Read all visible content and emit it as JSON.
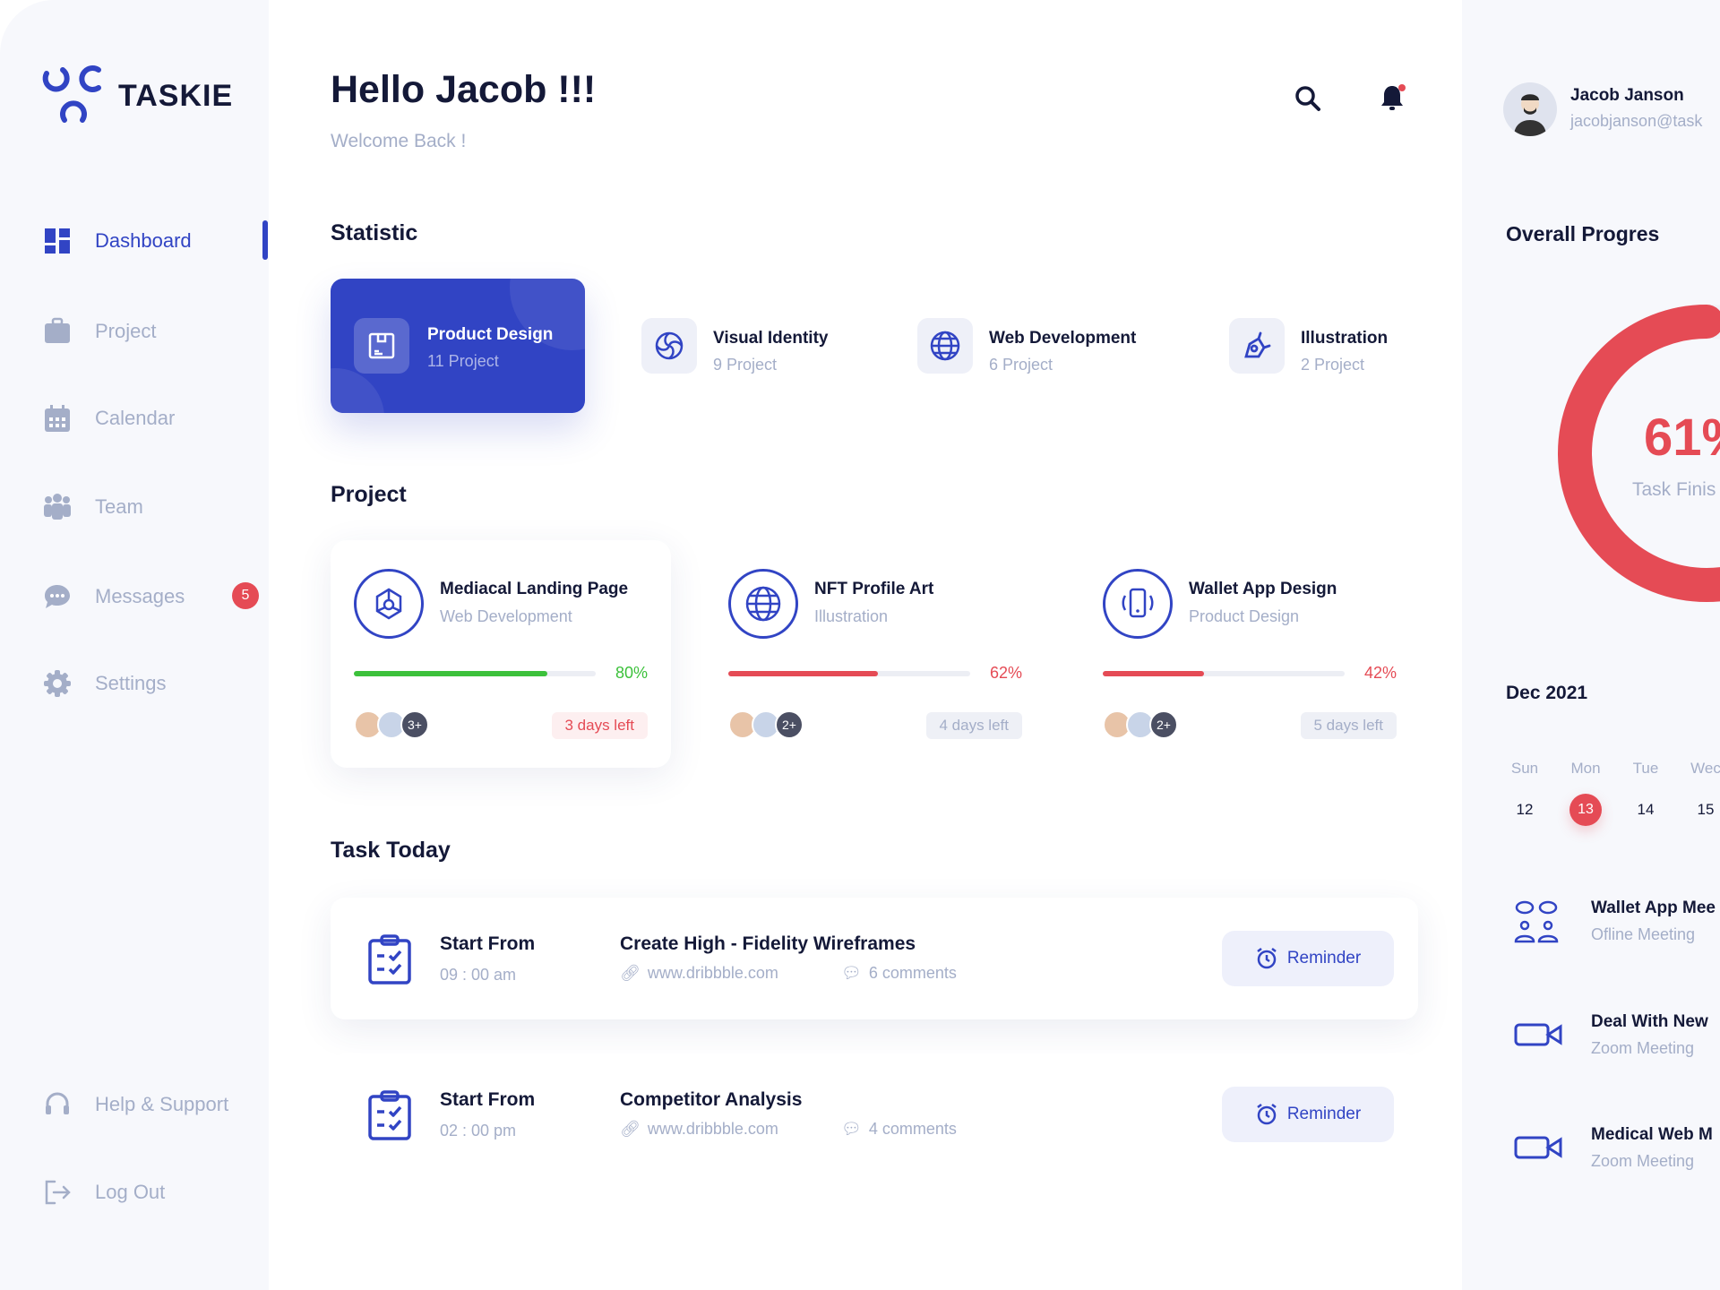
{
  "brand": {
    "name": "TASKIE",
    "accent": "#3144c4",
    "danger": "#e54b55",
    "success": "#3cc13b"
  },
  "sidebar": {
    "items": [
      {
        "label": "Dashboard",
        "icon": "grid-icon",
        "active": true
      },
      {
        "label": "Project",
        "icon": "briefcase-icon"
      },
      {
        "label": "Calendar",
        "icon": "calendar-icon"
      },
      {
        "label": "Team",
        "icon": "team-icon"
      },
      {
        "label": "Messages",
        "icon": "chat-icon",
        "badge": "5"
      },
      {
        "label": "Settings",
        "icon": "gear-icon"
      }
    ],
    "bottom": [
      {
        "label": "Help & Support",
        "icon": "headset-icon"
      },
      {
        "label": "Log Out",
        "icon": "logout-icon"
      }
    ]
  },
  "header": {
    "title": "Hello Jacob !!!",
    "subtitle": "Welcome Back !",
    "notification_dot": true
  },
  "statistic": {
    "title": "Statistic",
    "items": [
      {
        "title": "Product Design",
        "sub": "11 Project",
        "icon": "box-icon",
        "active": true
      },
      {
        "title": "Visual Identity",
        "sub": "9 Project",
        "icon": "swirl-icon"
      },
      {
        "title": "Web Development",
        "sub": "6 Project",
        "icon": "globe-icon"
      },
      {
        "title": "Illustration",
        "sub": "2 Project",
        "icon": "pen-tool-icon"
      }
    ]
  },
  "projects": {
    "title": "Project",
    "items": [
      {
        "title": "Mediacal Landing Page",
        "category": "Web Development",
        "progress": 80,
        "progress_label": "80%",
        "color": "#3cc13b",
        "more": "3+",
        "days": "3 days left",
        "urgent": true,
        "icon": "network-icon"
      },
      {
        "title": "NFT Profile Art",
        "category": "Illustration",
        "progress": 62,
        "progress_label": "62%",
        "color": "#e54b55",
        "more": "2+",
        "days": "4 days left",
        "icon": "globe-icon"
      },
      {
        "title": "Wallet App Design",
        "category": "Product Design",
        "progress": 42,
        "progress_label": "42%",
        "color": "#e54b55",
        "more": "2+",
        "days": "5 days left",
        "icon": "phone-vibrate-icon"
      }
    ]
  },
  "tasks": {
    "title": "Task Today",
    "items": [
      {
        "start_label": "Start From",
        "time": "09 : 00 am",
        "title": "Create High - Fidelity Wireframes",
        "link": "www.dribbble.com",
        "comments": "6 comments",
        "button": "Reminder"
      },
      {
        "start_label": "Start From",
        "time": "02 : 00 pm",
        "title": "Competitor Analysis",
        "link": "www.dribbble.com",
        "comments": "4 comments",
        "button": "Reminder"
      }
    ]
  },
  "user": {
    "name": "Jacob Janson",
    "email": "jacobjanson@task"
  },
  "progress": {
    "title": "Overall Progres",
    "value": 61,
    "value_label": "61%",
    "caption": "Task Finis"
  },
  "calendar": {
    "month": "Dec 2021",
    "days": [
      {
        "name": "Sun",
        "date": "12"
      },
      {
        "name": "Mon",
        "date": "13",
        "selected": true
      },
      {
        "name": "Tue",
        "date": "14"
      },
      {
        "name": "Wec",
        "date": "15"
      }
    ]
  },
  "meetings": [
    {
      "title": "Wallet App Mee",
      "type": "Ofline Meeting",
      "icon": "people-chat-icon"
    },
    {
      "title": "Deal With New",
      "type": "Zoom Meeting",
      "icon": "video-camera-icon"
    },
    {
      "title": "Medical Web M",
      "type": "Zoom Meeting",
      "icon": "video-camera-icon"
    }
  ]
}
